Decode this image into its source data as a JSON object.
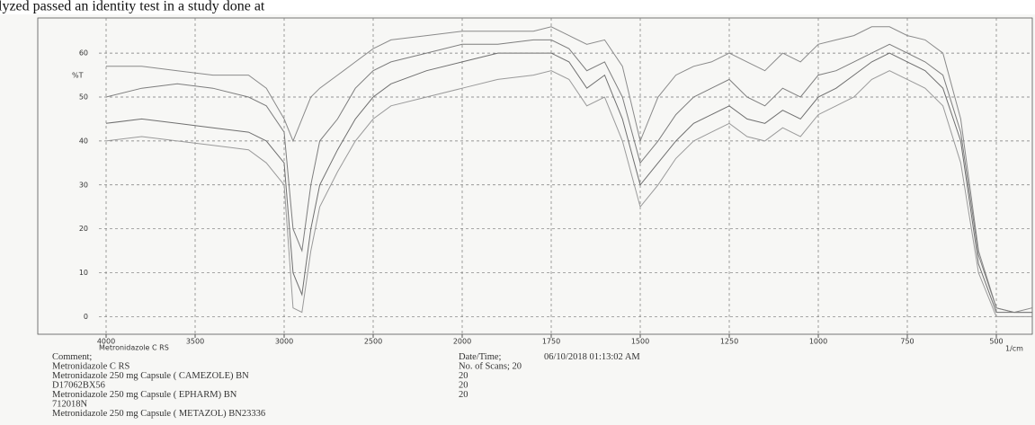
{
  "header_text": "lyzed passed an identity test in a study done at",
  "chart_data": {
    "type": "line",
    "y_label": "%T",
    "x_label": "1/cm",
    "axis_caption": "Metronidazole C RS",
    "xlim": [
      4000,
      400
    ],
    "xticks": [
      4000,
      3500,
      3000,
      2500,
      2000,
      1750,
      1500,
      1250,
      1000,
      750,
      500
    ],
    "ylim": [
      -4,
      68
    ],
    "yticks": [
      0,
      10,
      20,
      30,
      40,
      50,
      60
    ],
    "grid": true,
    "x": [
      4000,
      3800,
      3600,
      3400,
      3200,
      3100,
      3000,
      2950,
      2900,
      2850,
      2800,
      2700,
      2600,
      2500,
      2400,
      2200,
      2000,
      1900,
      1800,
      1750,
      1700,
      1650,
      1600,
      1550,
      1500,
      1450,
      1400,
      1350,
      1300,
      1250,
      1200,
      1150,
      1100,
      1050,
      1000,
      950,
      900,
      850,
      800,
      750,
      700,
      650,
      600,
      550,
      500,
      450,
      400
    ],
    "series": [
      {
        "color": "#8a8a8a",
        "values": [
          57,
          57,
          56,
          55,
          55,
          52,
          45,
          40,
          45,
          50,
          52,
          55,
          58,
          61,
          63,
          64,
          65,
          65,
          65,
          66,
          64,
          62,
          63,
          57,
          40,
          50,
          55,
          57,
          58,
          60,
          58,
          56,
          60,
          58,
          62,
          63,
          64,
          66,
          66,
          64,
          63,
          60,
          45,
          15,
          2,
          1,
          2
        ]
      },
      {
        "color": "#6f6f6f",
        "values": [
          44,
          45,
          44,
          43,
          42,
          40,
          35,
          10,
          5,
          20,
          30,
          38,
          45,
          50,
          53,
          56,
          58,
          60,
          60,
          60,
          58,
          52,
          55,
          45,
          30,
          35,
          40,
          44,
          46,
          48,
          45,
          44,
          47,
          45,
          50,
          52,
          55,
          58,
          60,
          58,
          56,
          52,
          40,
          12,
          1,
          1,
          1
        ]
      },
      {
        "color": "#9a9a9a",
        "values": [
          40,
          41,
          40,
          39,
          38,
          35,
          30,
          2,
          1,
          15,
          25,
          33,
          40,
          45,
          48,
          50,
          52,
          54,
          55,
          56,
          54,
          48,
          50,
          40,
          25,
          30,
          36,
          40,
          42,
          44,
          41,
          40,
          43,
          41,
          46,
          48,
          50,
          54,
          56,
          54,
          52,
          48,
          35,
          10,
          0,
          0,
          0
        ]
      },
      {
        "color": "#7d7d7d",
        "values": [
          50,
          52,
          53,
          52,
          50,
          48,
          42,
          20,
          15,
          30,
          40,
          45,
          52,
          56,
          58,
          60,
          62,
          62,
          63,
          63,
          61,
          56,
          58,
          50,
          35,
          40,
          46,
          50,
          52,
          54,
          50,
          48,
          52,
          50,
          55,
          56,
          58,
          60,
          62,
          60,
          58,
          55,
          42,
          14,
          2,
          1,
          1
        ]
      }
    ],
    "comments": [
      "Comment;",
      "Metronidazole C RS",
      "Metronidazole 250 mg Capsule ( CAMEZOLE) BN",
      "D17062BX56",
      "Metronidazole 250 mg Capsule ( EPHARM) BN",
      "712018N",
      "Metronidazole 250 mg Capsule ( METAZOL) BN23336"
    ],
    "info": [
      "Date/Time;",
      "06/10/2018 01:13:02 AM",
      "No. of Scans; 20",
      "20",
      "20",
      "20"
    ]
  }
}
